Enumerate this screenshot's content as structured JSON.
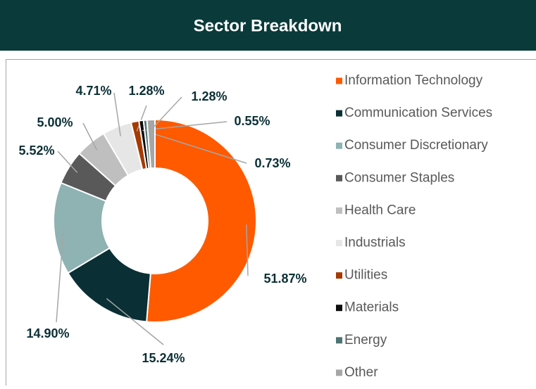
{
  "chart_data": {
    "type": "donut",
    "title": "Sector Breakdown",
    "categories": [
      "Information Technology",
      "Communication Services",
      "Consumer Discretionary",
      "Consumer Staples",
      "Health Care",
      "Industrials",
      "Utilities",
      "Materials",
      "Energy",
      "Other"
    ],
    "values": [
      51.87,
      15.24,
      14.9,
      5.52,
      5.0,
      4.71,
      1.28,
      0.73,
      0.55,
      1.28
    ],
    "value_labels": [
      "51.87%",
      "15.24%",
      "14.90%",
      "5.52%",
      "5.00%",
      "4.71%",
      "1.28%",
      "0.73%",
      "0.55%",
      "1.28%"
    ],
    "colors": [
      "#ff5a00",
      "#0a2f35",
      "#8fb2b3",
      "#595959",
      "#bfbfbf",
      "#e6e6e6",
      "#a63a00",
      "#0d0d0d",
      "#4d7373",
      "#a6a6a6"
    ],
    "legend": "right"
  }
}
